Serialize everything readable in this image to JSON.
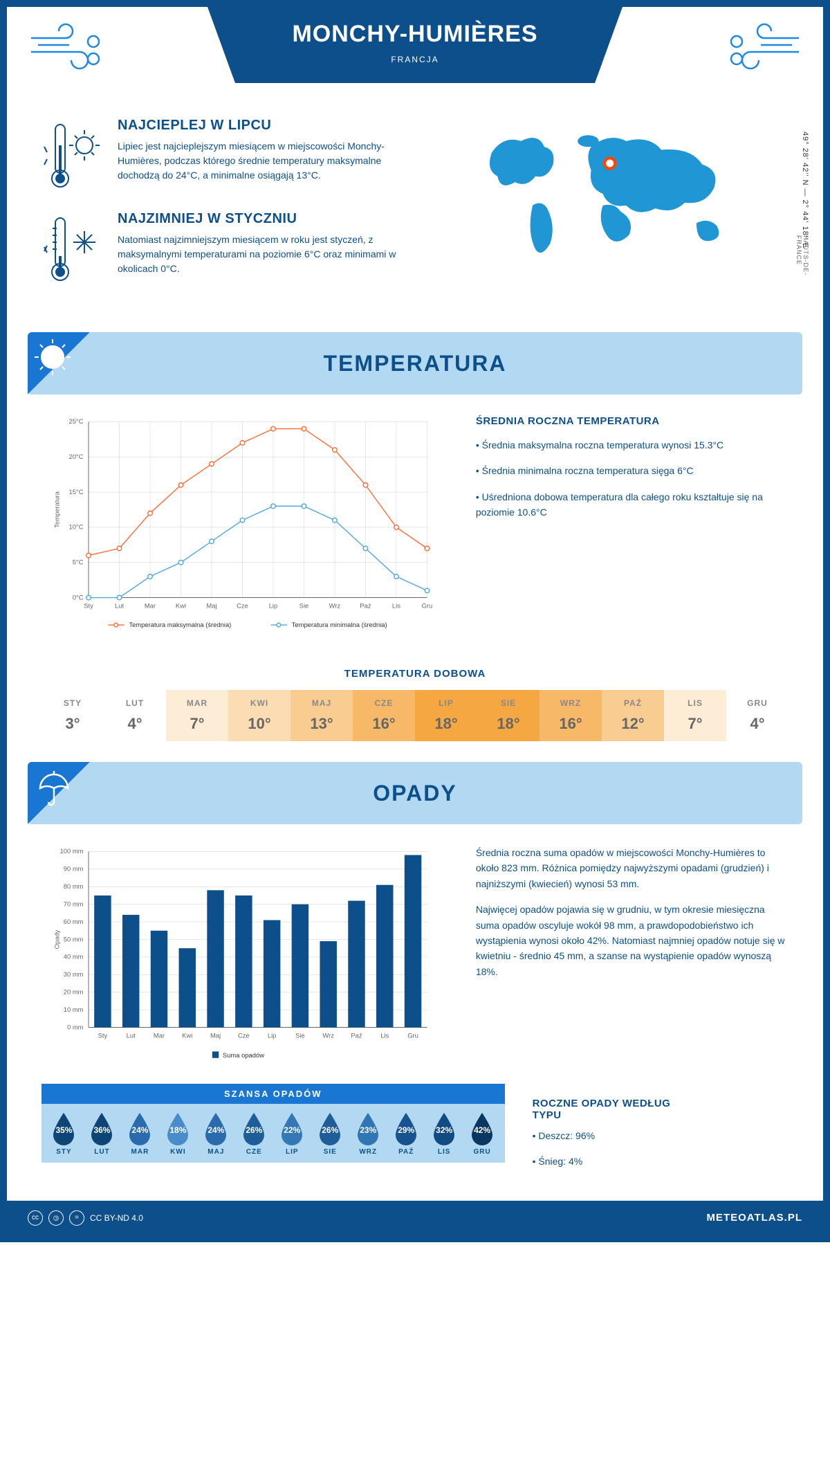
{
  "header": {
    "title": "MONCHY-HUMIÈRES",
    "country": "FRANCJA"
  },
  "intro": {
    "hot": {
      "title": "NAJCIEPLEJ W LIPCU",
      "text": "Lipiec jest najcieplejszym miesiącem w miejscowości Monchy-Humières, podczas którego średnie temperatury maksymalne dochodzą do 24°C, a minimalne osiągają 13°C."
    },
    "cold": {
      "title": "NAJZIMNIEJ W STYCZNIU",
      "text": "Natomiast najzimniejszym miesiącem w roku jest styczeń, z maksymalnymi temperaturami na poziomie 6°C oraz minimami w okolicach 0°C."
    },
    "coords": "49° 28' 42'' N — 2° 44' 18'' E",
    "region": "HAUTS-DE-FRANCE"
  },
  "temperature": {
    "section_title": "TEMPERATURA",
    "ylabel": "Temperatura",
    "months": [
      "Sty",
      "Lut",
      "Mar",
      "Kwi",
      "Maj",
      "Cze",
      "Lip",
      "Sie",
      "Wrz",
      "Paź",
      "Lis",
      "Gru"
    ],
    "max_series": [
      6,
      7,
      12,
      16,
      19,
      22,
      24,
      24,
      21,
      16,
      10,
      7
    ],
    "min_series": [
      0,
      0,
      3,
      5,
      8,
      11,
      13,
      13,
      11,
      7,
      3,
      1
    ],
    "max_color": "#ff6b35",
    "min_color": "#4fa8e0",
    "ylim": [
      0,
      25
    ],
    "ytick_step": 5,
    "legend_max": "Temperatura maksymalna (średnia)",
    "legend_min": "Temperatura minimalna (średnia)",
    "info_title": "ŚREDNIA ROCZNA TEMPERATURA",
    "info_1": "• Średnia maksymalna roczna temperatura wynosi 15.3°C",
    "info_2": "• Średnia minimalna roczna temperatura sięga 6°C",
    "info_3": "• Uśredniona dobowa temperatura dla całego roku kształtuje się na poziomie 10.6°C"
  },
  "daily": {
    "title": "TEMPERATURA DOBOWA",
    "months": [
      "STY",
      "LUT",
      "MAR",
      "KWI",
      "MAJ",
      "CZE",
      "LIP",
      "SIE",
      "WRZ",
      "PAŹ",
      "LIS",
      "GRU"
    ],
    "values": [
      "3°",
      "4°",
      "7°",
      "10°",
      "13°",
      "16°",
      "18°",
      "18°",
      "16°",
      "12°",
      "7°",
      "4°"
    ],
    "colors": [
      "#ffffff",
      "#ffffff",
      "#fdecd6",
      "#fbdcb3",
      "#f9cd92",
      "#f7b867",
      "#f5a742",
      "#f5a742",
      "#f7b867",
      "#f9cd92",
      "#fdecd6",
      "#ffffff"
    ]
  },
  "precip": {
    "section_title": "OPADY",
    "ylabel": "Opady",
    "months": [
      "Sty",
      "Lut",
      "Mar",
      "Kwi",
      "Maj",
      "Cze",
      "Lip",
      "Sie",
      "Wrz",
      "Paź",
      "Lis",
      "Gru"
    ],
    "values": [
      75,
      64,
      55,
      45,
      78,
      75,
      61,
      70,
      49,
      72,
      81,
      98
    ],
    "bar_color": "#0d4f8b",
    "ylim": [
      0,
      100
    ],
    "ytick_step": 10,
    "legend": "Suma opadów",
    "info_1": "Średnia roczna suma opadów w miejscowości Monchy-Humières to około 823 mm. Różnica pomiędzy najwyższymi opadami (grudzień) i najniższymi (kwiecień) wynosi 53 mm.",
    "info_2": "Najwięcej opadów pojawia się w grudniu, w tym okresie miesięczna suma opadów oscyluje wokół 98 mm, a prawdopodobieństwo ich wystąpienia wynosi około 42%. Natomiast najmniej opadów notuje się w kwietniu - średnio 45 mm, a szanse na wystąpienie opadów wynoszą 18%.",
    "type_title": "ROCZNE OPADY WEDŁUG TYPU",
    "type_1": "• Deszcz: 96%",
    "type_2": "• Śnieg: 4%"
  },
  "chance": {
    "title": "SZANSA OPADÓW",
    "months": [
      "STY",
      "LUT",
      "MAR",
      "KWI",
      "MAJ",
      "CZE",
      "LIP",
      "SIE",
      "WRZ",
      "PAŹ",
      "LIS",
      "GRU"
    ],
    "values": [
      "35%",
      "36%",
      "24%",
      "18%",
      "24%",
      "26%",
      "22%",
      "26%",
      "23%",
      "29%",
      "32%",
      "42%"
    ],
    "colors": [
      "#0d4577",
      "#0d4577",
      "#2a6bad",
      "#4a8cc9",
      "#2a6bad",
      "#1f5d99",
      "#3578b8",
      "#1f5d99",
      "#3076b5",
      "#16538f",
      "#114b84",
      "#093761"
    ]
  },
  "footer": {
    "license": "CC BY-ND 4.0",
    "site": "METEOATLAS.PL"
  }
}
